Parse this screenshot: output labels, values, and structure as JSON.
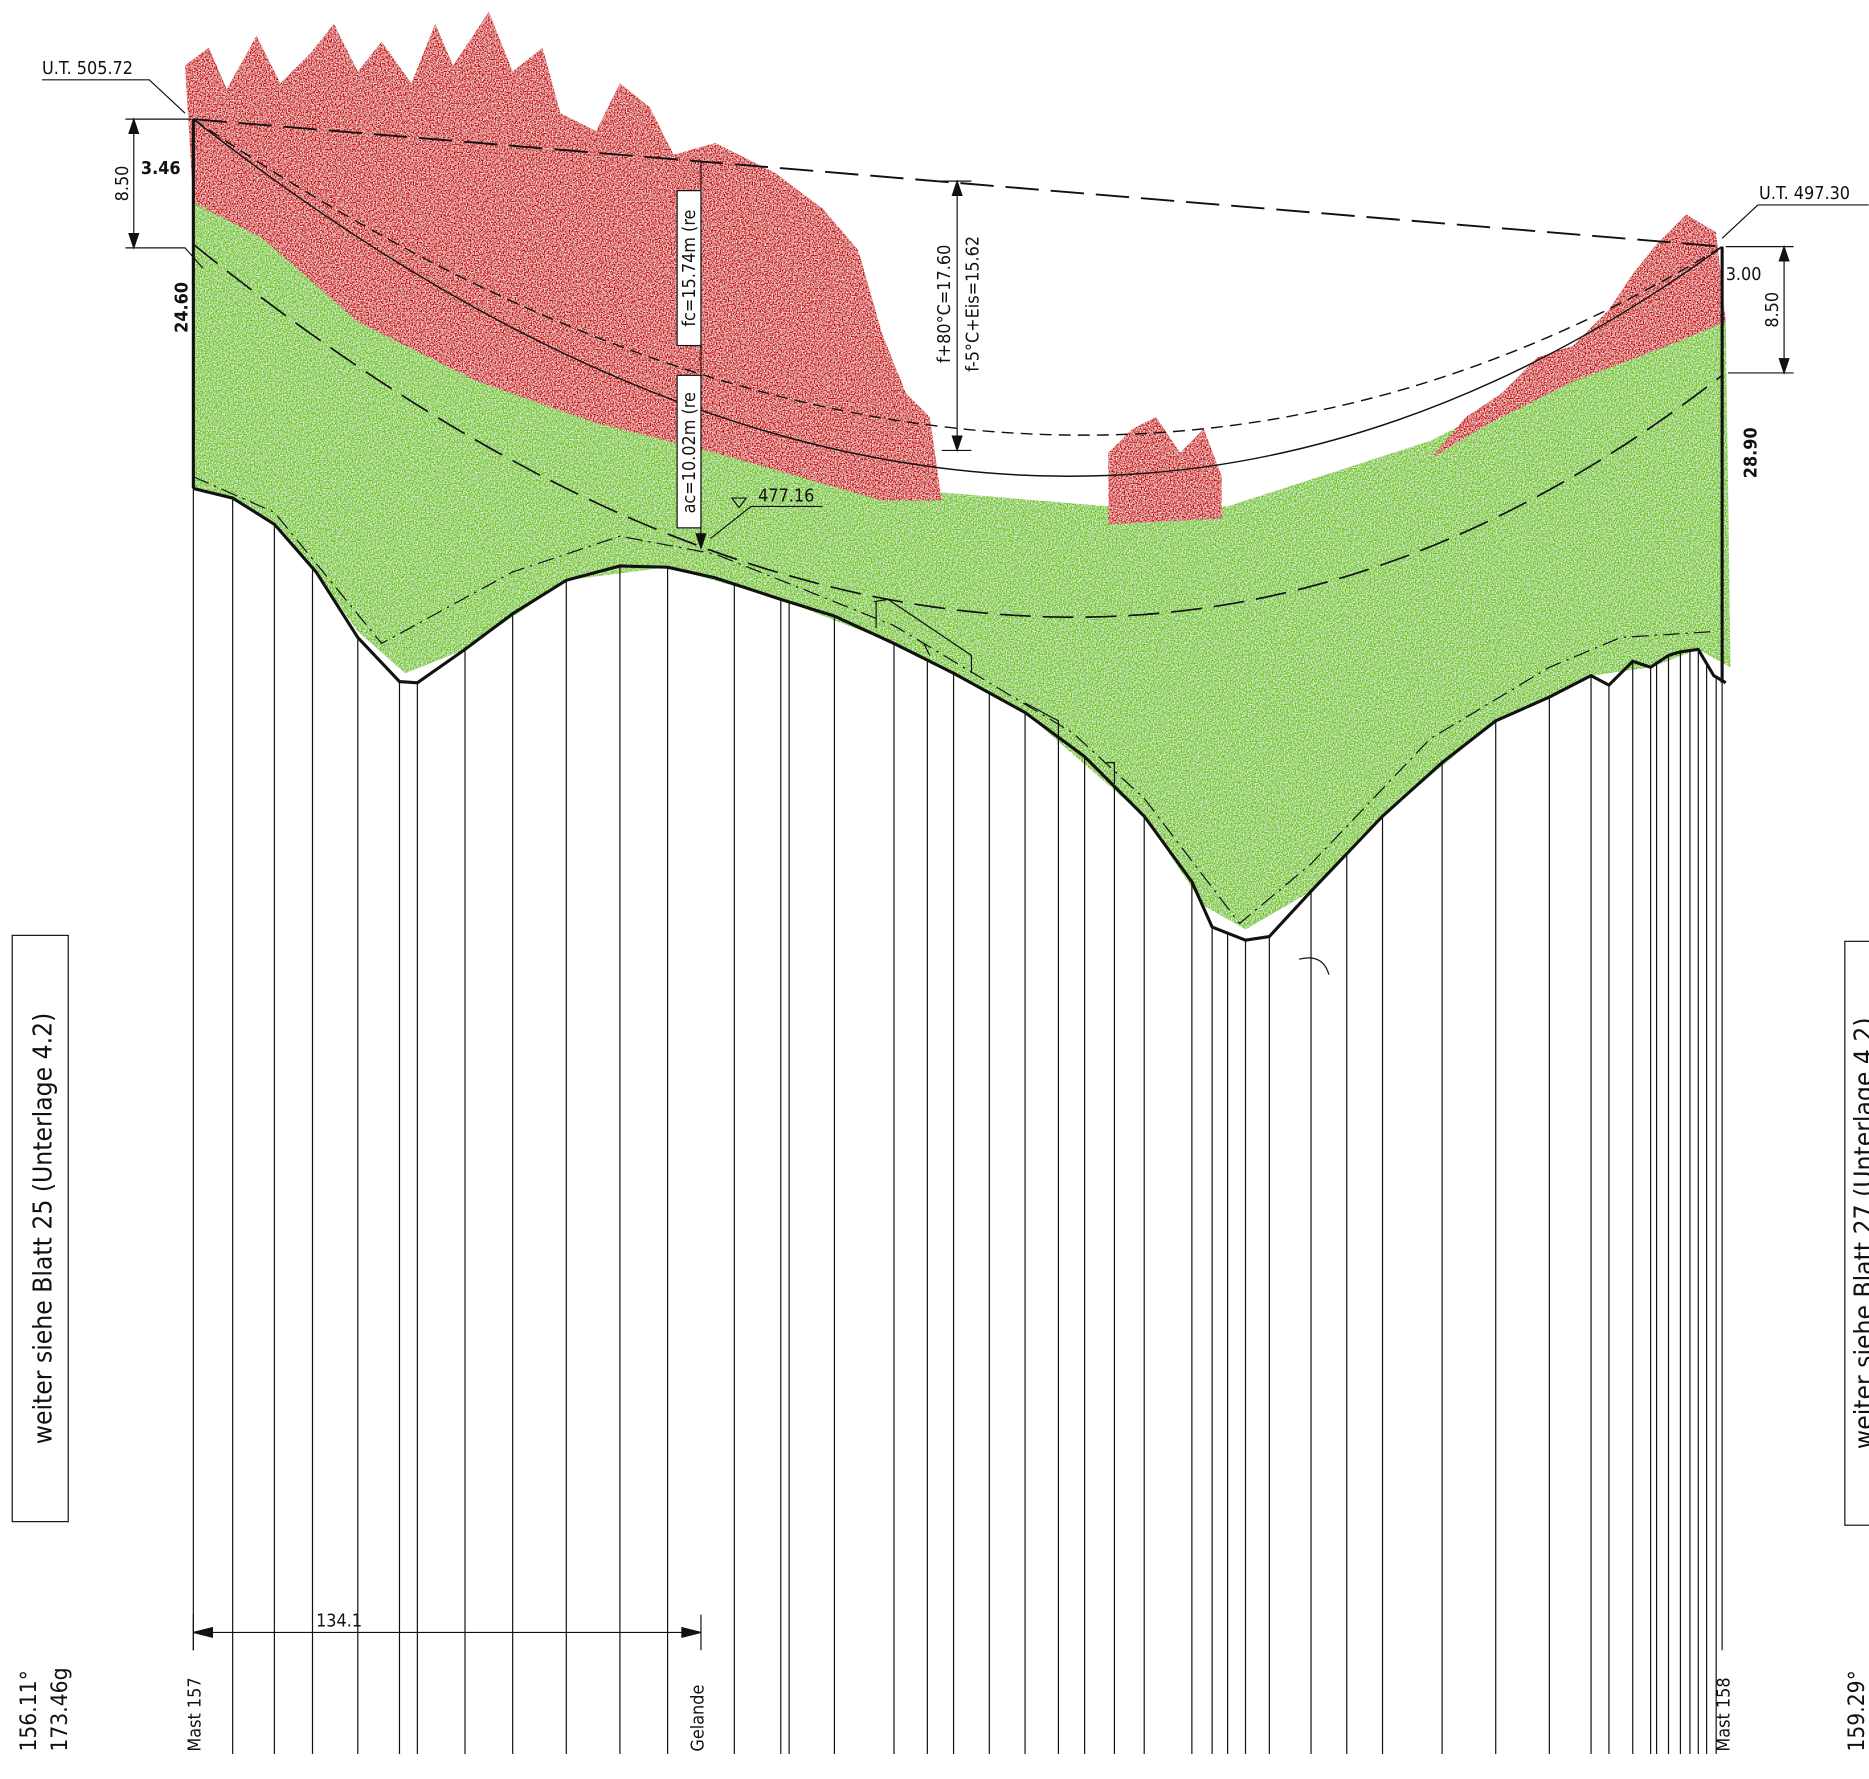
{
  "labels": {
    "ut_left": "U.T. 505.72",
    "ut_right": "U.T. 497.30",
    "dim_left": "8.50",
    "clear_left": "3.46",
    "height_left": "24.60",
    "dim_right": "8.50",
    "clear_right": "3.00",
    "height_right": "28.90",
    "fc": "fc=15.74m (re",
    "ac": "ac=10.02m (re",
    "elevation": "477.16",
    "sag_hot": "f+80°C=17.60",
    "sag_ice": "f-5°C+Eis=15.62",
    "continue_left": "weiter siehe Blatt 25 (Unterlage 4.2)",
    "continue_right": "weiter siehe Blatt 27 (Unterlage 4.2)",
    "distance": "134.1",
    "mast_left": "Mast 157",
    "terrain": "Gelande",
    "mast_right": "Mast 158",
    "angle_left_deg": "156.11°",
    "angle_left_gon": "173.46g",
    "angle_right_deg": "159.29°"
  }
}
